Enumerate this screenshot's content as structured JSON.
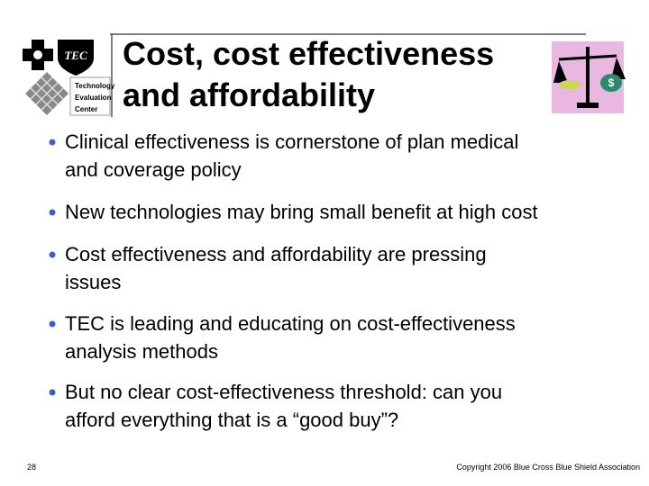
{
  "header": {
    "title_lines": [
      "Cost, cost effectiveness",
      "and affordability"
    ],
    "logo": {
      "mark": "TEC",
      "lines": [
        "Technology",
        "Evaluation",
        "Center"
      ]
    },
    "icon_symbol": "$"
  },
  "bullets": [
    [
      "Clinical effectiveness is cornerstone of plan medical",
      "and coverage policy"
    ],
    [
      "New technologies may bring small benefit at high cost"
    ],
    [
      "Cost effectiveness and affordability are pressing",
      "issues"
    ],
    [
      "TEC is leading and educating on cost-effectiveness",
      "analysis methods"
    ],
    [
      "But no clear cost-effectiveness threshold:  can you",
      "afford everything that is a “good buy”?"
    ]
  ],
  "footer": {
    "page": "28",
    "copyright": "Copyright 2006 Blue Cross Blue Shield Association"
  }
}
